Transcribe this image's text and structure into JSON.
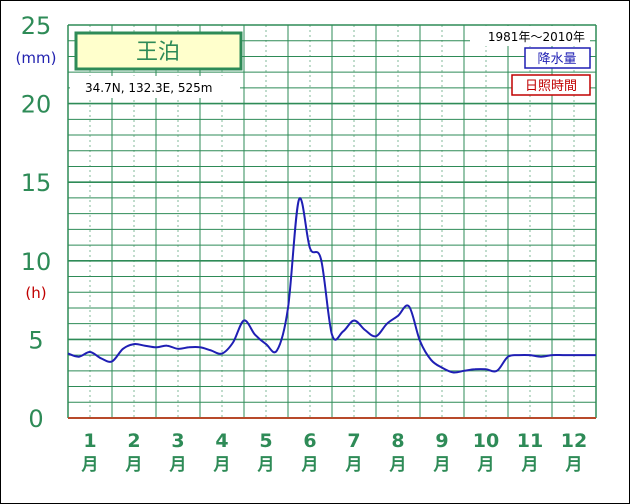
{
  "chart_data": {
    "type": "line",
    "station": "王泊",
    "location": "34.7N,  132.3E,  525m",
    "period": "1981年〜2010年",
    "legend": [
      {
        "label": "降水量",
        "color": "#1f1fb4"
      },
      {
        "label": "日照時間",
        "color": "#c00000"
      }
    ],
    "y_unit_precip": "(mm)",
    "y_unit_sun": "(h)",
    "y_ticks": [
      "0",
      "5",
      "10",
      "15",
      "20",
      "25"
    ],
    "ylim": [
      0,
      25
    ],
    "months": [
      {
        "num": "1",
        "unit": "月"
      },
      {
        "num": "2",
        "unit": "月"
      },
      {
        "num": "3",
        "unit": "月"
      },
      {
        "num": "4",
        "unit": "月"
      },
      {
        "num": "5",
        "unit": "月"
      },
      {
        "num": "6",
        "unit": "月"
      },
      {
        "num": "7",
        "unit": "月"
      },
      {
        "num": "8",
        "unit": "月"
      },
      {
        "num": "9",
        "unit": "月"
      },
      {
        "num": "10",
        "unit": "月"
      },
      {
        "num": "11",
        "unit": "月"
      },
      {
        "num": "12",
        "unit": "月"
      }
    ],
    "grid": true,
    "precipitation": {
      "x": [
        0.0,
        0.25,
        0.5,
        0.75,
        1.0,
        1.25,
        1.5,
        1.75,
        2.0,
        2.25,
        2.5,
        2.75,
        3.0,
        3.25,
        3.5,
        3.75,
        4.0,
        4.25,
        4.5,
        4.75,
        5.0,
        5.25,
        5.5,
        5.75,
        6.0,
        6.25,
        6.5,
        6.75,
        7.0,
        7.25,
        7.5,
        7.75,
        8.0,
        8.25,
        8.5,
        8.75,
        9.0,
        9.25,
        9.5,
        9.75,
        10.0,
        10.25,
        10.5,
        10.75,
        11.0,
        11.25,
        11.5,
        11.75,
        12.0
      ],
      "values": [
        4.1,
        3.9,
        4.2,
        3.8,
        3.6,
        4.4,
        4.7,
        4.6,
        4.5,
        4.6,
        4.4,
        4.5,
        4.5,
        4.3,
        4.1,
        4.8,
        6.2,
        5.3,
        4.7,
        4.3,
        7.0,
        13.9,
        10.8,
        10.1,
        5.3,
        5.5,
        6.2,
        5.6,
        5.2,
        6.0,
        6.5,
        7.1,
        4.9,
        3.7,
        3.2,
        2.9,
        3.0,
        3.1,
        3.1,
        3.0,
        3.9,
        4.0,
        4.0,
        3.9,
        4.0,
        4.0,
        4.0,
        4.0,
        4.0
      ]
    }
  }
}
